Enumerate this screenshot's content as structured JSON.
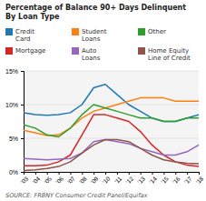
{
  "chart_data": {
    "type": "line",
    "title": "Percentage of Balance 90+ Days Delinquent",
    "subtitle": "By Loan Type",
    "annotations": [
      "SOURCE: FRBNY Consumer Credit Panel/Equifax"
    ],
    "x": [
      2003,
      2004,
      2005,
      2006,
      2007,
      2008,
      2009,
      2010,
      2011,
      2012,
      2013,
      2014,
      2015,
      2016,
      2017,
      2018
    ],
    "series": [
      {
        "name": "Credit\nCard",
        "values": [
          8.8,
          8.5,
          8.4,
          8.5,
          8.8,
          10.0,
          12.5,
          13.0,
          11.5,
          10.0,
          9.0,
          8.0,
          7.5,
          7.5,
          8.0,
          8.5
        ]
      },
      {
        "name": "Student\nLoans",
        "values": [
          6.2,
          5.8,
          5.4,
          5.5,
          6.5,
          8.0,
          9.0,
          9.5,
          10.0,
          10.5,
          11.0,
          11.0,
          11.0,
          10.5,
          10.5,
          10.5
        ]
      },
      {
        "name": "Other",
        "values": [
          7.0,
          6.5,
          5.5,
          5.2,
          6.5,
          8.5,
          10.0,
          9.5,
          9.0,
          8.5,
          8.0,
          8.0,
          7.5,
          7.5,
          8.0,
          8.0
        ]
      },
      {
        "name": "Mortgage",
        "values": [
          0.9,
          0.9,
          1.0,
          1.5,
          2.5,
          5.5,
          8.5,
          8.5,
          8.0,
          7.5,
          6.0,
          4.0,
          2.5,
          1.5,
          1.0,
          0.8
        ]
      },
      {
        "name": "Auto\nLoans",
        "values": [
          2.0,
          1.9,
          1.8,
          1.9,
          2.0,
          2.8,
          4.5,
          4.8,
          4.5,
          4.2,
          3.5,
          3.0,
          2.5,
          2.5,
          3.0,
          4.0
        ]
      },
      {
        "name": "Home Equity\nLine of Credit",
        "values": [
          0.2,
          0.3,
          0.5,
          0.8,
          1.5,
          2.8,
          4.0,
          4.8,
          4.8,
          4.5,
          3.5,
          2.5,
          1.8,
          1.5,
          1.3,
          1.2
        ]
      }
    ],
    "xlim": [
      2003,
      2018
    ],
    "xticks": [
      {
        "value": 2003,
        "label": "'03"
      },
      {
        "value": 2004,
        "label": "'04"
      },
      {
        "value": 2005,
        "label": "'05"
      },
      {
        "value": 2006,
        "label": "'06"
      },
      {
        "value": 2007,
        "label": "'07"
      },
      {
        "value": 2008,
        "label": "'08"
      },
      {
        "value": 2009,
        "label": "'09"
      },
      {
        "value": 2010,
        "label": "'10"
      },
      {
        "value": 2011,
        "label": "'11"
      },
      {
        "value": 2012,
        "label": "'12"
      },
      {
        "value": 2013,
        "label": "'13"
      },
      {
        "value": 2014,
        "label": "'14"
      },
      {
        "value": 2015,
        "label": "'15"
      },
      {
        "value": 2016,
        "label": "'16"
      },
      {
        "value": 2017,
        "label": "'17"
      },
      {
        "value": 2018,
        "label": "'18"
      }
    ],
    "ylim": [
      0,
      15
    ],
    "yticks": [
      {
        "value": 0,
        "label": "0%"
      },
      {
        "value": 5,
        "label": "5%"
      },
      {
        "value": 10,
        "label": "10%"
      },
      {
        "value": 15,
        "label": "15%"
      }
    ],
    "grid": true,
    "legend": "top"
  }
}
